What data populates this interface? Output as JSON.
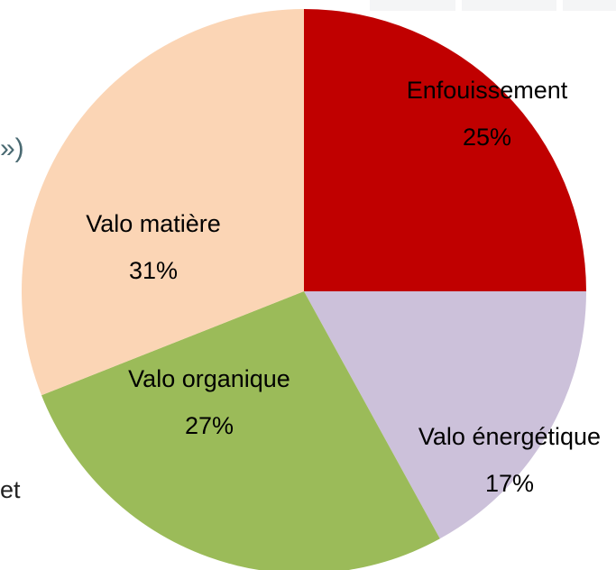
{
  "chart_data": {
    "type": "pie",
    "categories": [
      "Enfouissement",
      "Valo énergétique",
      "Valo organique",
      "Valo matière"
    ],
    "values": [
      25,
      17,
      27,
      31
    ],
    "value_labels": [
      "25%",
      "17%",
      "27%",
      "31%"
    ],
    "colors": [
      "#c00000",
      "#ccc1da",
      "#9bbb59",
      "#fbd5b5"
    ],
    "annotations": [
      "»)",
      "et"
    ]
  }
}
